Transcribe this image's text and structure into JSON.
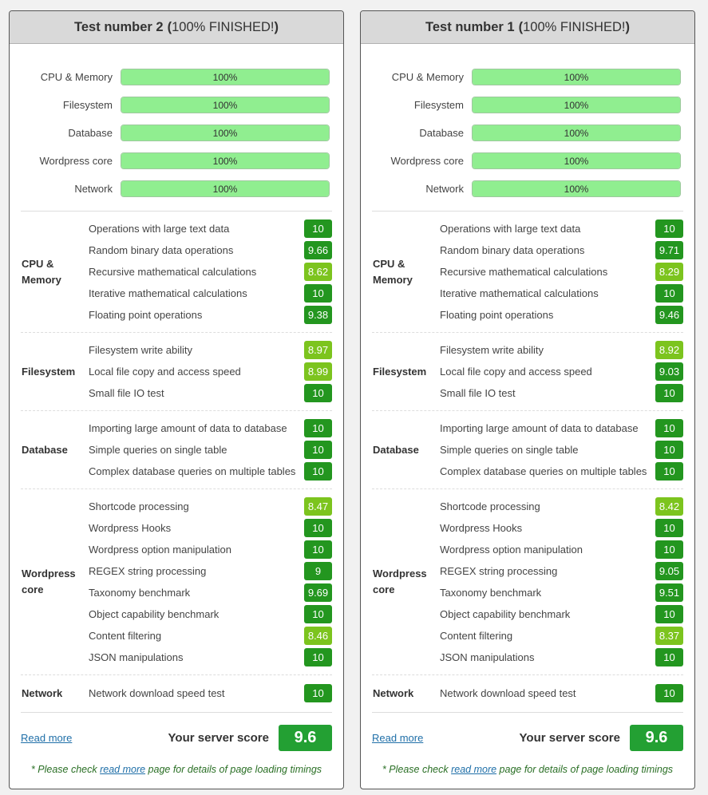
{
  "colors": {
    "badge_dark": "#23961f",
    "badge_light": "#7cc41e",
    "progress_fill": "#90ee90",
    "score": "#23a033"
  },
  "panels": [
    {
      "title": "Test number 2",
      "paren_open": "(",
      "status": "100% FINISHED!",
      "paren_close": ")",
      "progress": [
        {
          "label": "CPU & Memory",
          "value": "100%",
          "fraction": 1.0
        },
        {
          "label": "Filesystem",
          "value": "100%",
          "fraction": 1.0
        },
        {
          "label": "Database",
          "value": "100%",
          "fraction": 1.0
        },
        {
          "label": "Wordpress core",
          "value": "100%",
          "fraction": 1.0
        },
        {
          "label": "Network",
          "value": "100%",
          "fraction": 1.0
        }
      ],
      "sections": [
        {
          "name": "CPU & Memory",
          "items": [
            {
              "label": "Operations with large text data",
              "score": "10",
              "tone": "dark"
            },
            {
              "label": "Random binary data operations",
              "score": "9.66",
              "tone": "dark"
            },
            {
              "label": "Recursive mathematical calculations",
              "score": "8.62",
              "tone": "light"
            },
            {
              "label": "Iterative mathematical calculations",
              "score": "10",
              "tone": "dark"
            },
            {
              "label": "Floating point operations",
              "score": "9.38",
              "tone": "dark"
            }
          ]
        },
        {
          "name": "Filesystem",
          "items": [
            {
              "label": "Filesystem write ability",
              "score": "8.97",
              "tone": "light"
            },
            {
              "label": "Local file copy and access speed",
              "score": "8.99",
              "tone": "light"
            },
            {
              "label": "Small file IO test",
              "score": "10",
              "tone": "dark"
            }
          ]
        },
        {
          "name": "Database",
          "items": [
            {
              "label": "Importing large amount of data to database",
              "score": "10",
              "tone": "dark"
            },
            {
              "label": "Simple queries on single table",
              "score": "10",
              "tone": "dark"
            },
            {
              "label": "Complex database queries on multiple tables",
              "score": "10",
              "tone": "dark"
            }
          ]
        },
        {
          "name": "Wordpress core",
          "items": [
            {
              "label": "Shortcode processing",
              "score": "8.47",
              "tone": "light"
            },
            {
              "label": "Wordpress Hooks",
              "score": "10",
              "tone": "dark"
            },
            {
              "label": "Wordpress option manipulation",
              "score": "10",
              "tone": "dark"
            },
            {
              "label": "REGEX string processing",
              "score": "9",
              "tone": "dark"
            },
            {
              "label": "Taxonomy benchmark",
              "score": "9.69",
              "tone": "dark"
            },
            {
              "label": "Object capability benchmark",
              "score": "10",
              "tone": "dark"
            },
            {
              "label": "Content filtering",
              "score": "8.46",
              "tone": "light"
            },
            {
              "label": "JSON manipulations",
              "score": "10",
              "tone": "dark"
            }
          ]
        },
        {
          "name": "Network",
          "items": [
            {
              "label": "Network download speed test",
              "score": "10",
              "tone": "dark"
            }
          ]
        }
      ],
      "read_more": "Read more",
      "score_label": "Your server score",
      "score": "9.6",
      "note_pre": "* Please check ",
      "note_link": "read more",
      "note_post": " page for details of page loading timings"
    },
    {
      "title": "Test number 1",
      "paren_open": "(",
      "status": "100% FINISHED!",
      "paren_close": ")",
      "progress": [
        {
          "label": "CPU & Memory",
          "value": "100%",
          "fraction": 1.0
        },
        {
          "label": "Filesystem",
          "value": "100%",
          "fraction": 1.0
        },
        {
          "label": "Database",
          "value": "100%",
          "fraction": 1.0
        },
        {
          "label": "Wordpress core",
          "value": "100%",
          "fraction": 1.0
        },
        {
          "label": "Network",
          "value": "100%",
          "fraction": 1.0
        }
      ],
      "sections": [
        {
          "name": "CPU & Memory",
          "items": [
            {
              "label": "Operations with large text data",
              "score": "10",
              "tone": "dark"
            },
            {
              "label": "Random binary data operations",
              "score": "9.71",
              "tone": "dark"
            },
            {
              "label": "Recursive mathematical calculations",
              "score": "8.29",
              "tone": "light"
            },
            {
              "label": "Iterative mathematical calculations",
              "score": "10",
              "tone": "dark"
            },
            {
              "label": "Floating point operations",
              "score": "9.46",
              "tone": "dark"
            }
          ]
        },
        {
          "name": "Filesystem",
          "items": [
            {
              "label": "Filesystem write ability",
              "score": "8.92",
              "tone": "light"
            },
            {
              "label": "Local file copy and access speed",
              "score": "9.03",
              "tone": "dark"
            },
            {
              "label": "Small file IO test",
              "score": "10",
              "tone": "dark"
            }
          ]
        },
        {
          "name": "Database",
          "items": [
            {
              "label": "Importing large amount of data to database",
              "score": "10",
              "tone": "dark"
            },
            {
              "label": "Simple queries on single table",
              "score": "10",
              "tone": "dark"
            },
            {
              "label": "Complex database queries on multiple tables",
              "score": "10",
              "tone": "dark"
            }
          ]
        },
        {
          "name": "Wordpress core",
          "items": [
            {
              "label": "Shortcode processing",
              "score": "8.42",
              "tone": "light"
            },
            {
              "label": "Wordpress Hooks",
              "score": "10",
              "tone": "dark"
            },
            {
              "label": "Wordpress option manipulation",
              "score": "10",
              "tone": "dark"
            },
            {
              "label": "REGEX string processing",
              "score": "9.05",
              "tone": "dark"
            },
            {
              "label": "Taxonomy benchmark",
              "score": "9.51",
              "tone": "dark"
            },
            {
              "label": "Object capability benchmark",
              "score": "10",
              "tone": "dark"
            },
            {
              "label": "Content filtering",
              "score": "8.37",
              "tone": "light"
            },
            {
              "label": "JSON manipulations",
              "score": "10",
              "tone": "dark"
            }
          ]
        },
        {
          "name": "Network",
          "items": [
            {
              "label": "Network download speed test",
              "score": "10",
              "tone": "dark"
            }
          ]
        }
      ],
      "read_more": "Read more",
      "score_label": "Your server score",
      "score": "9.6",
      "note_pre": "* Please check ",
      "note_link": "read more",
      "note_post": " page for details of page loading timings"
    }
  ]
}
